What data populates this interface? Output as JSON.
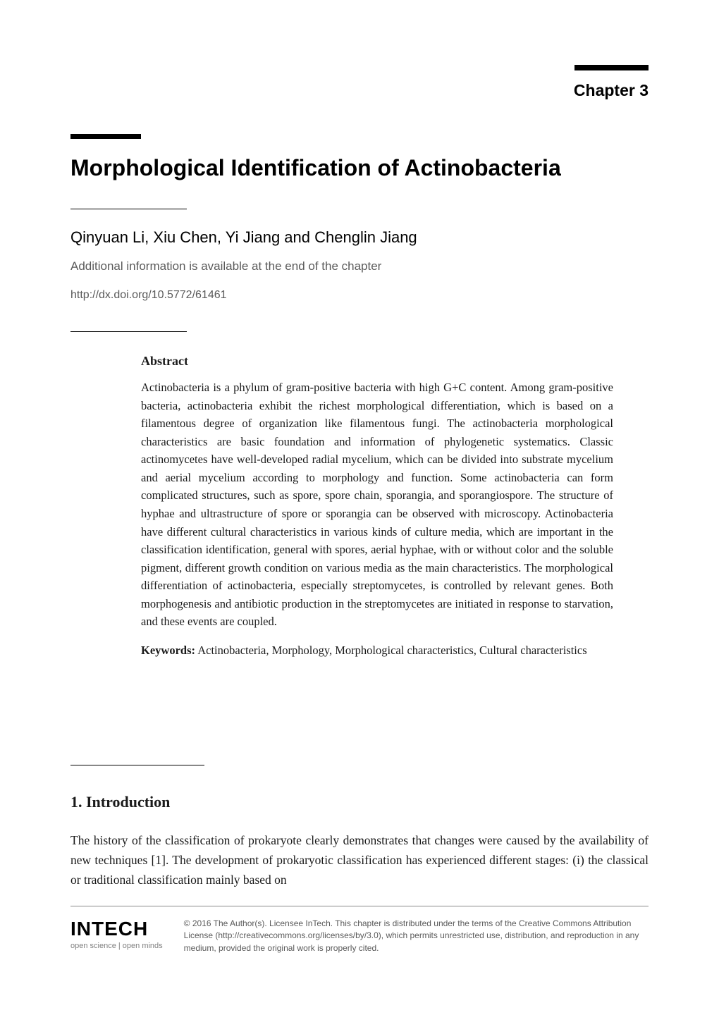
{
  "chapter_label": "Chapter 3",
  "title": "Morphological Identification of Actinobacteria",
  "authors": "Qinyuan Li, Xiu Chen, Yi Jiang and Chenglin Jiang",
  "additional_info": "Additional information is available at the end of the chapter",
  "doi": "http://dx.doi.org/10.5772/61461",
  "abstract": {
    "heading": "Abstract",
    "text": "Actinobacteria is a phylum of gram-positive bacteria with high G+C content. Among gram-positive bacteria, actinobacteria exhibit the richest morphological differentiation, which is based on a filamentous degree of organization like filamentous fungi. The actinobacteria morphological characteristics are basic foundation and information of phylogenetic systematics. Classic actinomycetes have well-developed radial mycelium, which can be divided into substrate mycelium and aerial mycelium according to morphology and function. Some actinobacteria can form complicated structures, such as spore, spore chain, sporangia, and sporangiospore. The structure of hyphae and ultrastructure of spore or sporangia can be observed with microscopy. Actinobacteria have different cultural characteristics in various kinds of culture media, which are important in the classification identification, general with spores, aerial hyphae, with or without color and the soluble pigment, different growth condition on various media as the main characteristics. The morphological differentiation of actinobacteria, especially streptomycetes, is controlled by relevant genes. Both morphogenesis and antibiotic production in the streptomycetes are initiated in response to starvation, and these events are coupled.",
    "keywords_label": "Keywords:",
    "keywords_text": " Actinobacteria, Morphology, Morphological characteristics, Cultural characteristics"
  },
  "section": {
    "heading": "1. Introduction",
    "body": "The history of the classification of prokaryote clearly demonstrates that changes were caused by the availability of new techniques [1]. The development of prokaryotic classification has experienced different stages: (i) the classical or traditional classification mainly based on"
  },
  "footer": {
    "logo": "INTECH",
    "tagline": "open science | open minds",
    "license": "© 2016 The Author(s). Licensee InTech. This chapter is distributed under the terms of the Creative Commons Attribution License (http://creativecommons.org/licenses/by/3.0), which permits unrestricted use, distribution, and reproduction in any medium, provided the original work is properly cited."
  },
  "style": {
    "page_bg": "#ffffff",
    "text_color": "#1a1a1a",
    "muted_color": "#5a5a5a",
    "bar_color": "#000000",
    "rule_color": "#888888",
    "logo_tagline_color": "#808080",
    "title_fontsize": 32,
    "author_fontsize": 22,
    "abstract_fontsize": 16.5,
    "body_fontsize": 17.5,
    "chapter_label_fontsize": 23,
    "section_heading_fontsize": 22
  }
}
